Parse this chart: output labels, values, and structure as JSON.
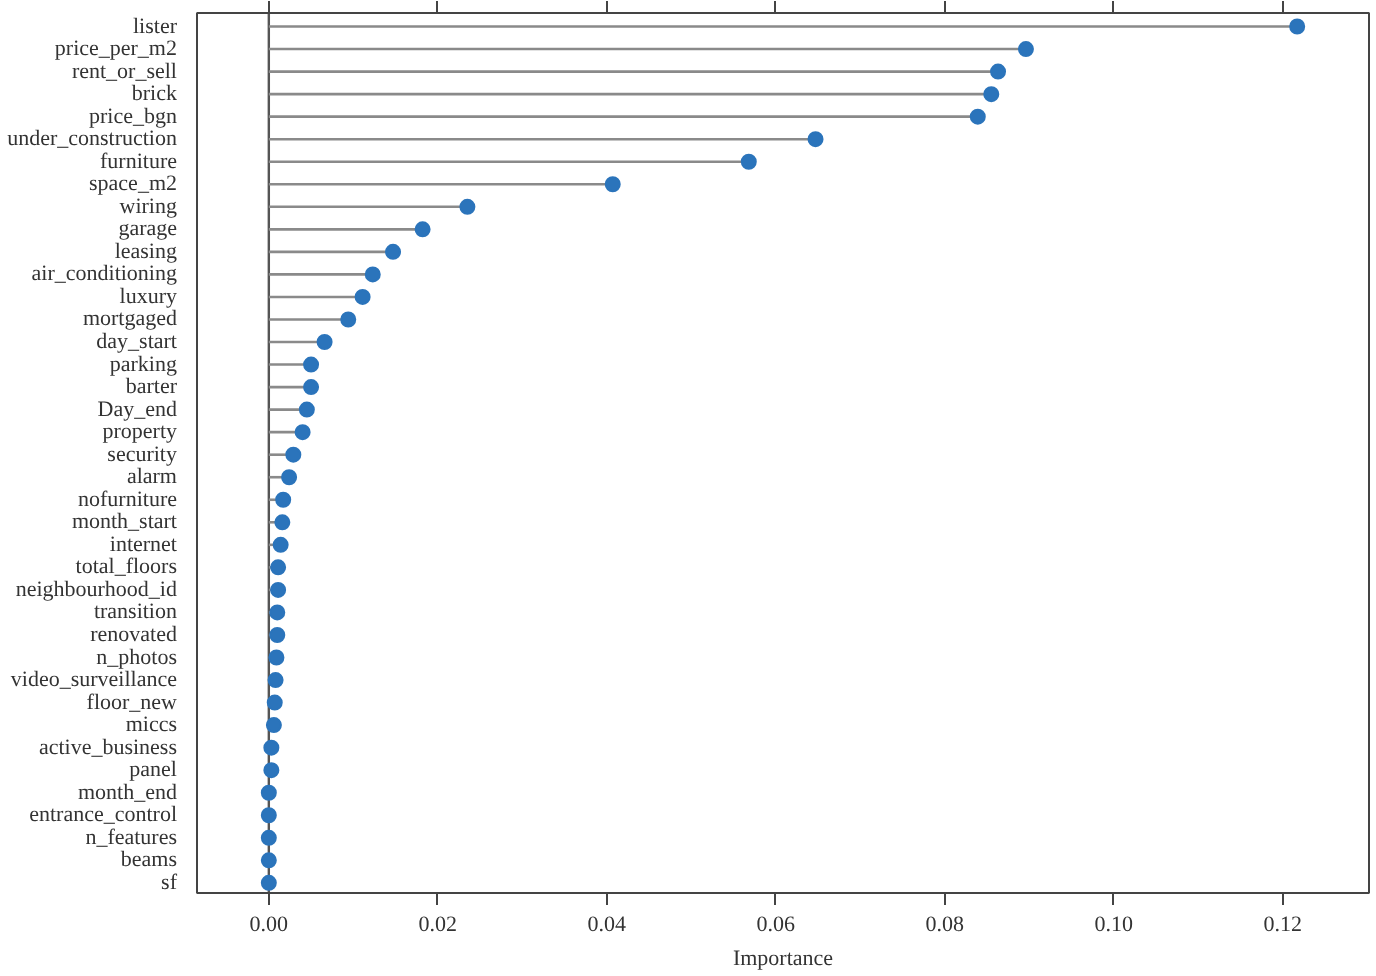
{
  "chart_data": {
    "type": "lollipop",
    "orientation": "horizontal",
    "xlabel": "Importance",
    "categories": [
      "lister",
      "price_per_m2",
      "rent_or_sell",
      "brick",
      "price_bgn",
      "under_construction",
      "furniture",
      "space_m2",
      "wiring",
      "garage",
      "leasing",
      "air_conditioning",
      "luxury",
      "mortgaged",
      "day_start",
      "parking",
      "barter",
      "Day_end",
      "property",
      "security",
      "alarm",
      "nofurniture",
      "month_start",
      "internet",
      "total_floors",
      "neighbourhood_id",
      "transition",
      "renovated",
      "n_photos",
      "video_surveillance",
      "floor_new",
      "miccs",
      "active_business",
      "panel",
      "month_end",
      "entrance_control",
      "n_features",
      "beams",
      "sf"
    ],
    "values": [
      0.1217,
      0.0896,
      0.0863,
      0.0855,
      0.0839,
      0.0647,
      0.0568,
      0.0407,
      0.0235,
      0.0182,
      0.0147,
      0.0123,
      0.0111,
      0.0094,
      0.0066,
      0.005,
      0.005,
      0.0045,
      0.004,
      0.0029,
      0.0024,
      0.0017,
      0.0016,
      0.0014,
      0.0011,
      0.0011,
      0.001,
      0.001,
      0.0009,
      0.0008,
      0.0007,
      0.0006,
      0.0003,
      0.0003,
      0.0,
      0.0,
      0.0,
      0.0,
      0.0
    ],
    "color": "#2b74bb",
    "marker": "circle",
    "xlim": [
      -0.0085,
      0.1302
    ],
    "xticks": [
      {
        "value": 0,
        "label": "0.00"
      },
      {
        "value": 0.02,
        "label": "0.02"
      },
      {
        "value": 0.04,
        "label": "0.04"
      },
      {
        "value": 0.06,
        "label": "0.06"
      },
      {
        "value": 0.08,
        "label": "0.08"
      },
      {
        "value": 0.1,
        "label": "0.10"
      },
      {
        "value": 0.12,
        "label": "0.12"
      }
    ],
    "ref_lines": [
      {
        "axis": "x",
        "value": 0,
        "color": "#555555"
      }
    ]
  }
}
